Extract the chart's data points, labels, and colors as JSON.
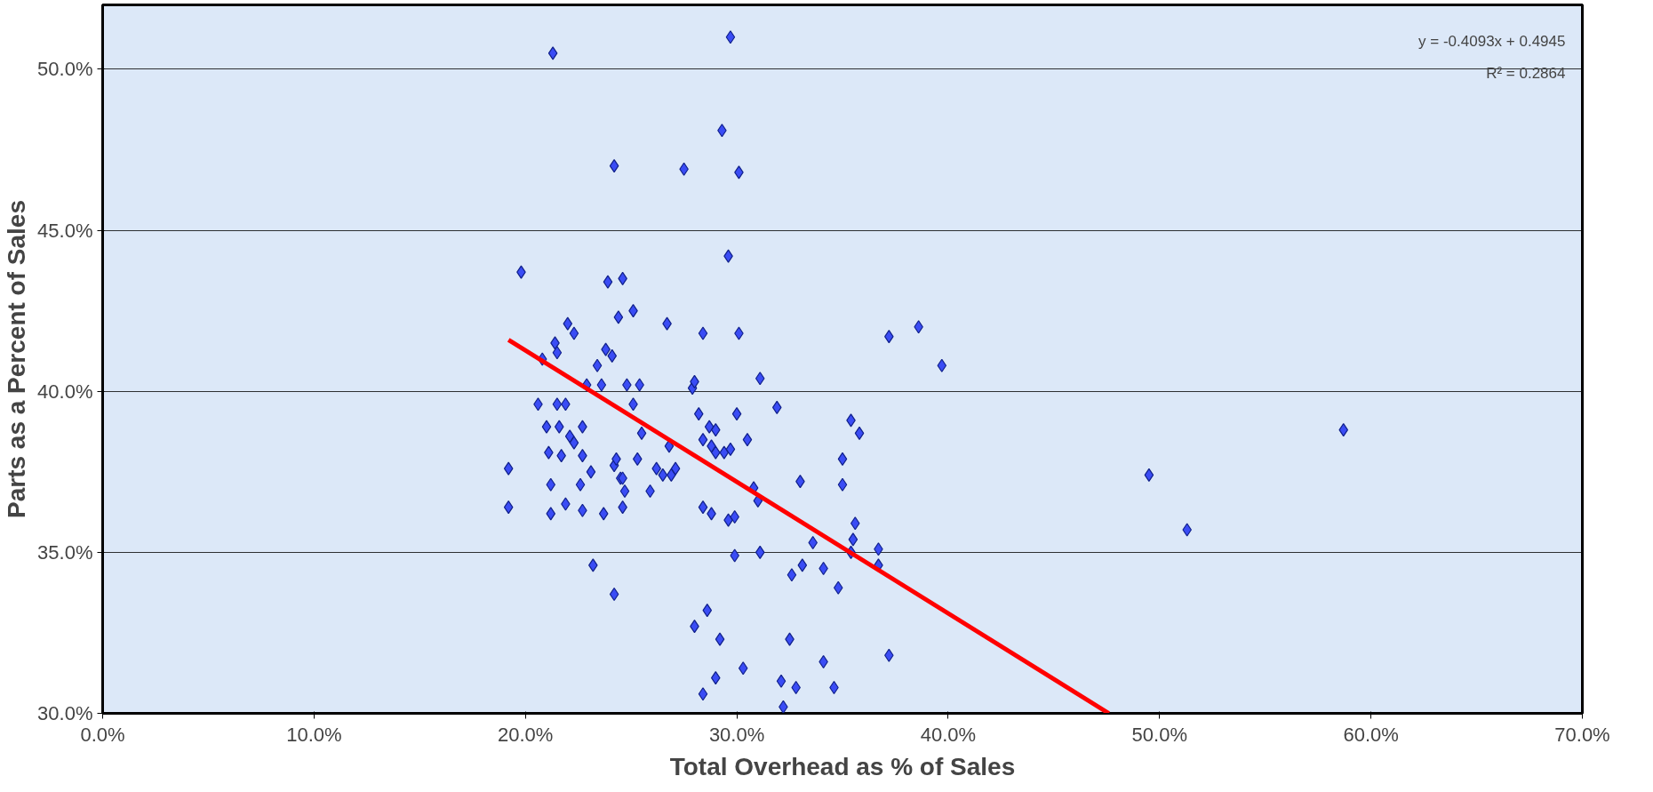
{
  "chart_data": {
    "type": "scatter",
    "xlabel": "Total Overhead as % of Sales",
    "ylabel": "Parts as a Percent of Sales",
    "grid": "y",
    "xlim": [
      0,
      70
    ],
    "ylim": [
      30,
      52
    ],
    "xticks": [
      {
        "value": 0,
        "label": "0.0%"
      },
      {
        "value": 10,
        "label": "10.0%"
      },
      {
        "value": 20,
        "label": "20.0%"
      },
      {
        "value": 30,
        "label": "30.0%"
      },
      {
        "value": 40,
        "label": "40.0%"
      },
      {
        "value": 50,
        "label": "50.0%"
      },
      {
        "value": 60,
        "label": "60.0%"
      },
      {
        "value": 70,
        "label": "70.0%"
      }
    ],
    "yticks": [
      {
        "value": 30,
        "label": "30.0%"
      },
      {
        "value": 35,
        "label": "35.0%"
      },
      {
        "value": 40,
        "label": "40.0%"
      },
      {
        "value": 45,
        "label": "45.0%"
      },
      {
        "value": 50,
        "label": "50.0%"
      }
    ],
    "annotations": [
      "y = -0.4093x + 0.4945",
      "R² = 0.2864"
    ],
    "series": [
      {
        "marker": "diamond",
        "color": "#3a4cf5",
        "x": [
          19.2,
          19.2,
          19.8,
          20.6,
          20.8,
          21.0,
          21.1,
          21.2,
          21.2,
          21.3,
          21.4,
          21.5,
          21.5,
          21.6,
          21.7,
          21.9,
          21.9,
          22.0,
          22.1,
          22.3,
          22.3,
          22.6,
          22.7,
          22.7,
          22.7,
          22.9,
          23.1,
          23.2,
          23.4,
          23.6,
          23.7,
          23.8,
          23.9,
          24.1,
          24.2,
          24.2,
          24.2,
          24.3,
          24.4,
          24.5,
          24.6,
          24.6,
          24.6,
          24.7,
          24.8,
          25.1,
          25.1,
          25.3,
          25.4,
          25.5,
          25.9,
          26.2,
          26.5,
          26.7,
          26.8,
          26.9,
          27.1,
          27.5,
          27.9,
          28.0,
          28.0,
          28.2,
          28.4,
          28.4,
          28.4,
          28.4,
          28.6,
          28.7,
          28.8,
          28.8,
          29.0,
          29.0,
          29.0,
          29.2,
          29.3,
          29.4,
          29.6,
          29.6,
          29.7,
          29.7,
          29.9,
          29.9,
          30.0,
          30.1,
          30.1,
          30.3,
          30.5,
          30.8,
          31.0,
          31.1,
          31.1,
          31.9,
          32.1,
          32.2,
          32.5,
          32.6,
          32.8,
          33.0,
          33.1,
          33.6,
          34.1,
          34.1,
          34.6,
          34.8,
          35.0,
          35.0,
          35.4,
          35.4,
          35.5,
          35.6,
          35.8,
          36.7,
          36.7,
          37.2,
          37.2,
          38.6,
          39.7,
          49.5,
          51.3,
          58.7
        ],
        "values": [
          37.6,
          36.4,
          43.7,
          39.6,
          41.0,
          38.9,
          38.1,
          37.1,
          36.2,
          50.5,
          41.5,
          41.2,
          39.6,
          38.9,
          38.0,
          39.6,
          36.5,
          42.1,
          38.6,
          41.8,
          38.4,
          37.1,
          38.9,
          38.0,
          36.3,
          40.2,
          37.5,
          34.6,
          40.8,
          40.2,
          36.2,
          41.3,
          43.4,
          41.1,
          47.0,
          37.7,
          33.7,
          37.9,
          42.3,
          37.3,
          43.5,
          36.4,
          37.3,
          36.9,
          40.2,
          42.5,
          39.6,
          37.9,
          40.2,
          38.7,
          36.9,
          37.6,
          37.4,
          42.1,
          38.3,
          37.4,
          37.6,
          46.9,
          40.1,
          40.3,
          32.7,
          39.3,
          41.8,
          38.5,
          36.4,
          30.6,
          33.2,
          38.9,
          36.2,
          38.3,
          38.8,
          38.1,
          31.1,
          32.3,
          48.1,
          38.1,
          44.2,
          36.0,
          51.0,
          38.2,
          36.1,
          34.9,
          39.3,
          46.8,
          41.8,
          31.4,
          38.5,
          37.0,
          36.6,
          40.4,
          35.0,
          39.5,
          31.0,
          30.2,
          32.3,
          34.3,
          30.8,
          37.2,
          34.6,
          35.3,
          31.6,
          34.5,
          30.8,
          33.9,
          37.9,
          37.1,
          39.1,
          35.0,
          35.4,
          35.9,
          38.7,
          34.6,
          35.1,
          31.8,
          41.7,
          42.0,
          40.8,
          37.4,
          35.7,
          38.8
        ]
      },
      {
        "type": "line",
        "marker": "none",
        "color": "#ff0000",
        "line_style": "solid",
        "x": [
          19.2,
          47.6
        ],
        "values": [
          41.6,
          30.0
        ]
      }
    ]
  }
}
